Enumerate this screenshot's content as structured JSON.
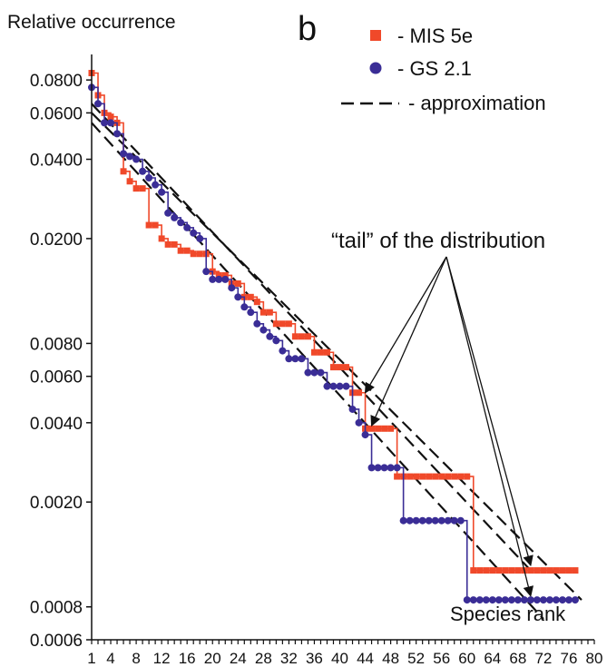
{
  "chart_data": {
    "type": "scatter",
    "panel_label": "b",
    "ylabel": "Relative occurrence",
    "xlabel": "Species rank",
    "yscale": "log",
    "ylim": [
      0.0006,
      0.1
    ],
    "xlim": [
      1,
      80
    ],
    "yticks": [
      "0.0800",
      "0.0600",
      "0.0400",
      "0.0200",
      "0.0080",
      "0.0060",
      "0.0040",
      "0.0020",
      "0.0008",
      "0.0006"
    ],
    "xticks": [
      "1",
      "4",
      "8",
      "12",
      "16",
      "20",
      "24",
      "28",
      "32",
      "36",
      "40",
      "44",
      "48",
      "52",
      "56",
      "60",
      "64",
      "68",
      "72",
      "76",
      "80"
    ],
    "annotation": "“tail” of the distribution",
    "legend": [
      {
        "label": "- MIS 5e",
        "marker": "square",
        "color": "#f0492a"
      },
      {
        "label": "- GS 2.1",
        "marker": "circle",
        "color": "#3a2d96"
      },
      {
        "label": "- approximation",
        "marker": "dashed-line",
        "color": "#111111"
      }
    ],
    "series": [
      {
        "name": "MIS 5e",
        "marker": "square",
        "color": "#f0492a",
        "x": [
          1,
          2,
          3,
          4,
          5,
          6,
          7,
          8,
          9,
          10,
          11,
          12,
          13,
          14,
          15,
          16,
          17,
          18,
          19,
          20,
          21,
          22,
          23,
          24,
          25,
          26,
          27,
          28,
          29,
          30,
          31,
          32,
          33,
          34,
          35,
          36,
          37,
          38,
          39,
          40,
          41,
          42,
          43,
          44,
          45,
          46,
          47,
          48,
          49,
          50,
          51,
          52,
          53,
          54,
          55,
          56,
          57,
          58,
          59,
          60,
          61,
          62,
          63,
          64,
          65,
          66,
          67,
          68,
          69,
          70,
          71,
          72,
          73,
          74,
          75,
          76,
          77
        ],
        "y": [
          0.085,
          0.07,
          0.06,
          0.058,
          0.055,
          0.036,
          0.033,
          0.031,
          0.031,
          0.0225,
          0.0225,
          0.02,
          0.019,
          0.019,
          0.018,
          0.018,
          0.0175,
          0.0175,
          0.0175,
          0.015,
          0.0145,
          0.0145,
          0.0135,
          0.0135,
          0.012,
          0.012,
          0.0115,
          0.0105,
          0.0105,
          0.0095,
          0.0095,
          0.0095,
          0.0085,
          0.0085,
          0.0085,
          0.0074,
          0.0074,
          0.0074,
          0.0065,
          0.0065,
          0.0065,
          0.0052,
          0.0052,
          0.0038,
          0.0038,
          0.0038,
          0.0038,
          0.0038,
          0.0025,
          0.0025,
          0.0025,
          0.0025,
          0.0025,
          0.0025,
          0.0025,
          0.0025,
          0.0025,
          0.0025,
          0.0025,
          0.0025,
          0.0011,
          0.0011,
          0.0011,
          0.0011,
          0.0011,
          0.0011,
          0.0011,
          0.0011,
          0.0011,
          0.0011,
          0.0011,
          0.0011,
          0.0011,
          0.0011,
          0.0011,
          0.0011,
          0.0011
        ]
      },
      {
        "name": "GS 2.1",
        "marker": "circle",
        "color": "#3a2d96",
        "x": [
          1,
          2,
          3,
          4,
          5,
          6,
          7,
          8,
          9,
          10,
          11,
          12,
          13,
          14,
          15,
          16,
          17,
          18,
          19,
          20,
          21,
          22,
          23,
          24,
          25,
          26,
          27,
          28,
          29,
          30,
          31,
          32,
          33,
          34,
          35,
          36,
          37,
          38,
          39,
          40,
          41,
          42,
          43,
          44,
          45,
          46,
          47,
          48,
          49,
          50,
          51,
          52,
          53,
          54,
          55,
          56,
          57,
          58,
          59,
          60,
          61,
          62,
          63,
          64,
          65,
          66,
          67,
          68,
          69,
          70,
          71,
          72,
          73,
          74,
          75,
          76,
          77
        ],
        "y": [
          0.075,
          0.065,
          0.055,
          0.055,
          0.05,
          0.042,
          0.041,
          0.04,
          0.036,
          0.034,
          0.032,
          0.03,
          0.025,
          0.024,
          0.023,
          0.022,
          0.021,
          0.02,
          0.015,
          0.014,
          0.014,
          0.014,
          0.013,
          0.012,
          0.011,
          0.0105,
          0.0095,
          0.009,
          0.0085,
          0.0082,
          0.0075,
          0.007,
          0.007,
          0.007,
          0.0062,
          0.0062,
          0.0062,
          0.0055,
          0.0055,
          0.0055,
          0.0055,
          0.0045,
          0.004,
          0.0036,
          0.0027,
          0.0027,
          0.0027,
          0.0027,
          0.0027,
          0.0017,
          0.0017,
          0.0017,
          0.0017,
          0.0017,
          0.0017,
          0.0017,
          0.0017,
          0.0017,
          0.0017,
          0.00085,
          0.00085,
          0.00085,
          0.00085,
          0.00085,
          0.00085,
          0.00085,
          0.00085,
          0.00085,
          0.00085,
          0.00085,
          0.00085,
          0.00085,
          0.00085,
          0.00085,
          0.00085,
          0.00085,
          0.00085
        ]
      }
    ],
    "approximation_lines": [
      {
        "x": [
          1,
          78
        ],
        "y": [
          0.06,
          0.00085
        ]
      },
      {
        "x": [
          1,
          72
        ],
        "y": [
          0.055,
          0.00072
        ]
      },
      {
        "x": [
          1,
          70
        ],
        "y": [
          0.065,
          0.0011
        ]
      }
    ]
  }
}
